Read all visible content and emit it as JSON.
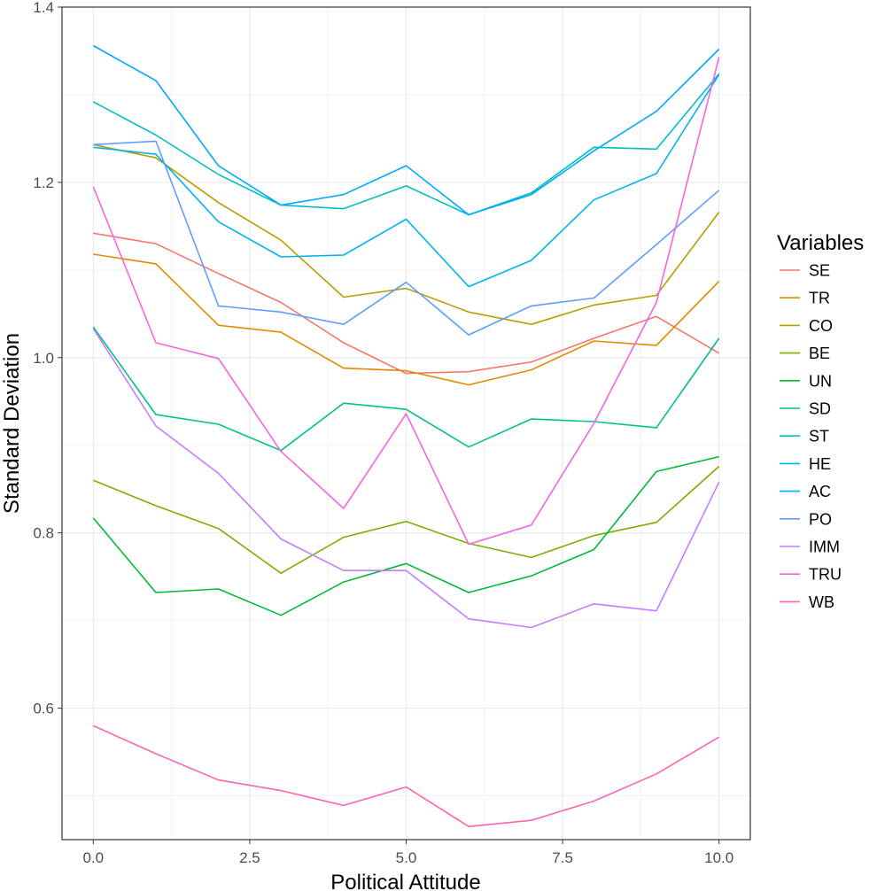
{
  "chart_data": {
    "type": "line",
    "xlabel": "Political Attitude",
    "ylabel": "Standard Deviation",
    "xlim": [
      -0.5,
      10.5
    ],
    "ylim": [
      0.45,
      1.4
    ],
    "x_ticks": [
      0,
      2.5,
      5,
      7.5,
      10
    ],
    "x_tick_labels": [
      "0.0",
      "2.5",
      "5.0",
      "7.5",
      "10.0"
    ],
    "y_ticks": [
      0.6,
      0.8,
      1.0,
      1.2,
      1.4
    ],
    "y_tick_labels": [
      "0.6",
      "0.8",
      "1.0",
      "1.2",
      "1.4"
    ],
    "grid": true,
    "legend": {
      "title": "Variables",
      "position": "right"
    },
    "x": [
      0,
      1,
      2,
      3,
      4,
      5,
      6,
      7,
      8,
      9,
      10
    ],
    "series": [
      {
        "name": "SE",
        "color": "#F8766D",
        "values": [
          1.142,
          1.13,
          1.096,
          1.063,
          1.017,
          0.982,
          0.984,
          0.995,
          1.022,
          1.047,
          1.005
        ]
      },
      {
        "name": "TR",
        "color": "#DE8C00",
        "values": [
          1.118,
          1.107,
          1.037,
          1.029,
          0.988,
          0.985,
          0.969,
          0.986,
          1.019,
          1.014,
          1.087
        ]
      },
      {
        "name": "CO",
        "color": "#B79F00",
        "values": [
          1.243,
          1.228,
          1.177,
          1.134,
          1.069,
          1.079,
          1.052,
          1.038,
          1.06,
          1.071,
          1.166
        ]
      },
      {
        "name": "BE",
        "color": "#7CAE00",
        "values": [
          0.86,
          0.831,
          0.805,
          0.754,
          0.795,
          0.813,
          0.788,
          0.772,
          0.797,
          0.812,
          0.876
        ]
      },
      {
        "name": "UN",
        "color": "#00BA38",
        "values": [
          0.817,
          0.732,
          0.736,
          0.706,
          0.744,
          0.765,
          0.732,
          0.751,
          0.781,
          0.87,
          0.887
        ]
      },
      {
        "name": "SD",
        "color": "#00C08B",
        "values": [
          1.035,
          0.935,
          0.924,
          0.894,
          0.948,
          0.941,
          0.898,
          0.93,
          0.927,
          0.92,
          1.022
        ]
      },
      {
        "name": "ST",
        "color": "#00BFC4",
        "values": [
          1.292,
          1.254,
          1.209,
          1.174,
          1.17,
          1.196,
          1.163,
          1.188,
          1.24,
          1.238,
          1.324
        ]
      },
      {
        "name": "HE",
        "color": "#00B4F0",
        "values": [
          1.24,
          1.232,
          1.155,
          1.115,
          1.117,
          1.158,
          1.081,
          1.111,
          1.18,
          1.21,
          1.323
        ]
      },
      {
        "name": "AC",
        "color": "#00A9FF",
        "values": [
          1.356,
          1.316,
          1.219,
          1.174,
          1.186,
          1.219,
          1.163,
          1.186,
          1.236,
          1.281,
          1.352
        ]
      },
      {
        "name": "PO",
        "color": "#619CFF",
        "values": [
          1.243,
          1.247,
          1.059,
          1.052,
          1.038,
          1.086,
          1.026,
          1.059,
          1.068,
          1.129,
          1.191
        ]
      },
      {
        "name": "IMM",
        "color": "#C77CFF",
        "values": [
          1.033,
          0.922,
          0.868,
          0.793,
          0.757,
          0.757,
          0.702,
          0.692,
          0.719,
          0.711,
          0.858
        ]
      },
      {
        "name": "TRU",
        "color": "#F564E3",
        "values": [
          1.195,
          1.017,
          0.999,
          0.893,
          0.828,
          0.936,
          0.787,
          0.809,
          0.925,
          1.063,
          1.343
        ]
      },
      {
        "name": "WB",
        "color": "#FF64B0",
        "values": [
          0.58,
          0.548,
          0.518,
          0.506,
          0.489,
          0.51,
          0.465,
          0.472,
          0.494,
          0.525,
          0.567
        ]
      }
    ]
  }
}
